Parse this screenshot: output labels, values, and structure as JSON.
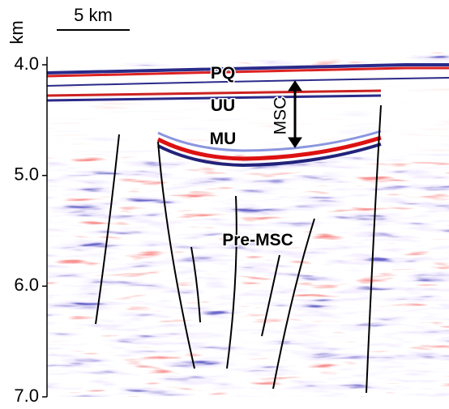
{
  "axis": {
    "unit": "km",
    "ticks": [
      "4.0",
      "5.0",
      "6.0",
      "7.0"
    ]
  },
  "scale_bar": "5 km",
  "labels": {
    "pq": "PQ",
    "uu": "UU",
    "mu": "MU",
    "msc": "MSC",
    "pre_msc": "Pre-MSC"
  }
}
